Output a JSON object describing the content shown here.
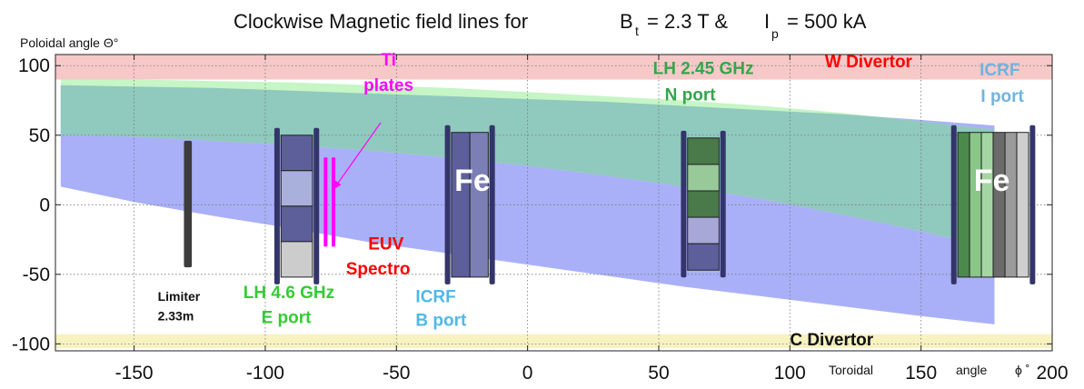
{
  "chart_data": {
    "type": "area",
    "title": "Clockwise Magnetic field lines for",
    "title_parts": {
      "b_sym": "B",
      "b_sub": "t",
      "b_val": "= 2.3 T  &",
      "i_sym": "I",
      "i_sub": "p",
      "i_val": "= 500 kA"
    },
    "ylabel": "Poloidal  angle Θ°",
    "xlabel_left": "Toroidal",
    "xlabel_mid": "angle",
    "xlabel_sym": "ϕ ˚",
    "xlim": [
      -180,
      200
    ],
    "ylim": [
      -105,
      108
    ],
    "grid": true,
    "x_ticks": [
      -150,
      -100,
      -50,
      0,
      50,
      100,
      150,
      200
    ],
    "x_tick_labels": [
      "-150",
      "-100",
      "-50",
      "0",
      "50",
      "100",
      "150",
      "200"
    ],
    "y_ticks": [
      -100,
      -50,
      0,
      50,
      100
    ],
    "y_tick_labels": [
      "-100",
      "-50",
      "0",
      "50",
      "100"
    ],
    "colors": {
      "blue_band": "#aab0f7",
      "green_band": "#c6f5c6",
      "overlap": "#90c9bd",
      "w_divertor": "#f7c8c8",
      "c_divertor": "#f7f2c0",
      "ti_plates": "#ff00ff"
    },
    "bands": [
      {
        "name": "blue",
        "x": [
          -178,
          -150,
          -120,
          -90,
          -60,
          -30,
          0,
          30,
          60,
          90,
          120,
          150,
          178
        ],
        "upper": [
          86,
          85,
          84,
          82,
          80,
          78,
          76,
          74,
          71,
          68,
          65,
          61,
          57
        ],
        "lower": [
          13,
          2,
          -8,
          -17,
          -27,
          -35,
          -43,
          -51,
          -59,
          -66,
          -73,
          -80,
          -86
        ]
      },
      {
        "name": "green",
        "x": [
          -178,
          -150,
          -120,
          -90,
          -60,
          -30,
          0,
          30,
          60,
          90,
          120,
          150,
          178
        ],
        "upper": [
          90,
          90,
          89,
          88,
          86,
          84,
          81,
          78,
          75,
          71,
          66,
          60,
          54
        ],
        "lower": [
          50,
          49,
          46,
          43,
          39,
          34,
          28,
          21,
          13,
          4,
          -7,
          -19,
          -31
        ]
      }
    ],
    "divertors": [
      {
        "name": "W Divertor",
        "y": [
          90,
          108
        ]
      },
      {
        "name": "C Divertor",
        "y": [
          -103,
          -93
        ]
      }
    ],
    "components": [
      {
        "name": "limiter",
        "x": [
          -131,
          -128
        ],
        "y": [
          -45,
          46
        ],
        "color": "#3c3c3c"
      },
      {
        "name": "lh46",
        "x": [
          -94,
          -82
        ],
        "frames": [
          -95.5,
          -80.5
        ],
        "y": [
          -52,
          50
        ],
        "cells": [
          [
            "#5c5f9a",
            "#aab0dc",
            "#5c5f9a",
            "#cccccc"
          ]
        ]
      },
      {
        "name": "icrf-b",
        "x": [
          -29,
          -15
        ],
        "frames": [
          -30.5,
          -13.5
        ],
        "y": [
          -52,
          52
        ],
        "cells": [
          [
            "#5c5f9a"
          ],
          [
            "#7b7fb6"
          ]
        ]
      },
      {
        "name": "lh245",
        "x": [
          61,
          73
        ],
        "frames": [
          59.5,
          74.5
        ],
        "y": [
          -47,
          48
        ],
        "cells": [
          [
            "#4a7a4a",
            "#98c998",
            "#4a7a4a",
            "#a8a8d8",
            "#5c5f9a"
          ]
        ]
      },
      {
        "name": "icrf-i",
        "x": [
          164,
          191
        ],
        "frames": [
          162.5,
          192.5
        ],
        "y": [
          -52,
          52
        ],
        "cells": [
          [
            "#4a8a4a"
          ],
          [
            "#88c788"
          ],
          [
            "#a3d6a3"
          ],
          [
            "#6b6b6b"
          ],
          [
            "#9b9b9b"
          ],
          [
            "#cfcfcf"
          ]
        ]
      }
    ],
    "ti_plate_lines": [
      {
        "x": -77,
        "y": [
          -30,
          34
        ]
      },
      {
        "x": -74,
        "y": [
          -30,
          34
        ]
      }
    ],
    "arrow": {
      "from": [
        -56,
        59
      ],
      "to": [
        -74,
        11
      ]
    },
    "annotations": [
      {
        "key": "ti1",
        "text": "Ti",
        "x": -53,
        "y": 100,
        "color": "#ff00ff",
        "anchor": "middle"
      },
      {
        "key": "ti2",
        "text": "plates",
        "x": -53,
        "y": 82,
        "color": "#ff00ff",
        "anchor": "middle"
      },
      {
        "key": "lh245a",
        "text": "LH 2.45 GHz",
        "x": 67,
        "y": 94,
        "color": "#33a64a",
        "anchor": "middle"
      },
      {
        "key": "lh245b",
        "text": "N port",
        "x": 62,
        "y": 75,
        "color": "#33a64a",
        "anchor": "middle"
      },
      {
        "key": "wdiv",
        "text": "W Divertor",
        "x": 130,
        "y": 99,
        "color": "#ff0000",
        "anchor": "middle"
      },
      {
        "key": "icrfi1",
        "text": "ICRF",
        "x": 180,
        "y": 93,
        "color": "#6fb3e0",
        "anchor": "middle"
      },
      {
        "key": "icrfi2",
        "text": "I port",
        "x": 181,
        "y": 74,
        "color": "#6fb3e0",
        "anchor": "middle"
      },
      {
        "key": "fe1",
        "text": "Fe",
        "x": -21,
        "y": 10,
        "color": "#ffffff",
        "anchor": "middle",
        "big": true
      },
      {
        "key": "fe2",
        "text": "Fe",
        "x": 177,
        "y": 10,
        "color": "#ffffff",
        "anchor": "middle",
        "big": true
      },
      {
        "key": "euv1",
        "text": "EUV",
        "x": -54,
        "y": -32,
        "color": "#ff0000",
        "anchor": "middle"
      },
      {
        "key": "euv2",
        "text": "Spectro",
        "x": -57,
        "y": -50,
        "color": "#ff0000",
        "anchor": "middle"
      },
      {
        "key": "lim1",
        "text": "Limiter",
        "x": -141,
        "y": -69,
        "color": "#111111",
        "anchor": "start",
        "small": true
      },
      {
        "key": "lim2",
        "text": "2.33m",
        "x": -141,
        "y": -83,
        "color": "#111111",
        "anchor": "start",
        "small": true
      },
      {
        "key": "lh46a",
        "text": "LH 4.6 GHz",
        "x": -91,
        "y": -67,
        "color": "#33cc33",
        "anchor": "middle"
      },
      {
        "key": "lh46b",
        "text": "E port",
        "x": -92,
        "y": -85,
        "color": "#33cc33",
        "anchor": "middle"
      },
      {
        "key": "icrfb1",
        "text": "ICRF",
        "x": -35,
        "y": -70,
        "color": "#4fb8e8",
        "anchor": "middle"
      },
      {
        "key": "icrfb2",
        "text": "B port",
        "x": -33,
        "y": -87,
        "color": "#4fb8e8",
        "anchor": "middle"
      },
      {
        "key": "cdiv",
        "text": "C Divertor",
        "x": 100,
        "y": -101,
        "color": "#111111",
        "anchor": "start"
      }
    ]
  }
}
